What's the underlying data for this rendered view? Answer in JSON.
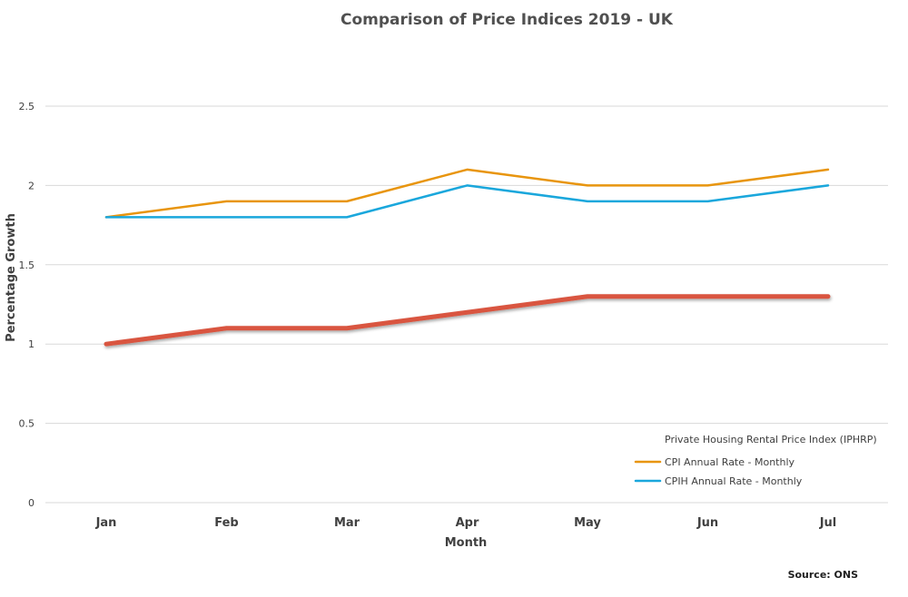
{
  "chart_data": {
    "type": "line",
    "title": "Comparison of Price Indices 2019 - UK",
    "xlabel": "Month",
    "ylabel": "Percentage Growth",
    "categories": [
      "Jan",
      "Feb",
      "Mar",
      "Apr",
      "May",
      "Jun",
      "Jul"
    ],
    "ylim": [
      0,
      2.5
    ],
    "yticks": [
      "0",
      "0.5",
      "1",
      "1.5",
      "2",
      "2.5"
    ],
    "grid": true,
    "legend_position": "bottom-right",
    "source": "Source: ONS",
    "series": [
      {
        "name": "Private Housing Rental Price Index (IPHRP)",
        "color": "#d9553f",
        "values": [
          1.0,
          1.1,
          1.1,
          1.2,
          1.3,
          1.3,
          1.3
        ]
      },
      {
        "name": "CPI Annual Rate - Monthly",
        "color": "#e8950e",
        "values": [
          1.8,
          1.9,
          1.9,
          2.1,
          2.0,
          2.0,
          2.1
        ]
      },
      {
        "name": "CPIH Annual Rate - Monthly",
        "color": "#1aa7dc",
        "values": [
          1.8,
          1.8,
          1.8,
          2.0,
          1.9,
          1.9,
          2.0
        ]
      }
    ]
  }
}
